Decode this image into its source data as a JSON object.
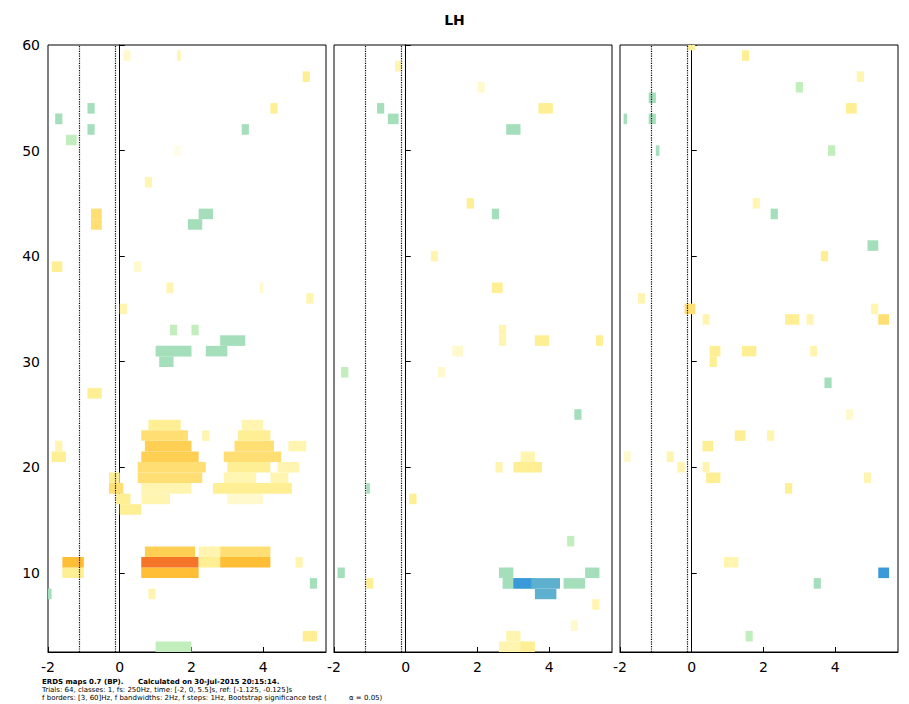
{
  "chart_data": {
    "type": "heatmap",
    "title": "LH",
    "footer": [
      "ERDS maps 0.7 (BP).      Calculated on 30-Jul-2015 20:15:14.",
      "Trials: 64, classes: 1, fs: 250Hz, time: [-2, 0, 5.5]s, ref: [-1.125, -0.125]s",
      "f borders: [3, 60]Hz, f bandwidths: 2Hz, f steps: 1Hz, Bootstrap significance test (          α = 0.05)"
    ],
    "xlim": [
      -2,
      5.75
    ],
    "xticks": [
      -2,
      0,
      2,
      4
    ],
    "ylim": [
      2.5,
      60
    ],
    "yticks": [
      10,
      20,
      30,
      40,
      50,
      60
    ],
    "ref_lines": [
      -1.125,
      -0.125
    ],
    "colorscale": {
      "range": [
        -0.6,
        1.2
      ],
      "colors": [
        "#3a9ad9",
        "#b9ecb4",
        "#ffffff",
        "#fff29a",
        "#ffb828",
        "#f05a28"
      ]
    },
    "panels": [
      {
        "tick_labels": true,
        "cells": [
          [
            0.6,
            2.2,
            10,
            0.8
          ],
          [
            0.6,
            2.2,
            11,
            1.1
          ],
          [
            0.7,
            2.1,
            12,
            0.7
          ],
          [
            2.2,
            2.8,
            11,
            0.5
          ],
          [
            2.2,
            2.8,
            12,
            0.4
          ],
          [
            2.8,
            4.2,
            11,
            0.8
          ],
          [
            2.8,
            4.2,
            12,
            0.6
          ],
          [
            -1.6,
            -1.0,
            10,
            0.5
          ],
          [
            -1.6,
            -1.0,
            11,
            0.8
          ],
          [
            0.0,
            0.6,
            16,
            0.5
          ],
          [
            -0.1,
            0.3,
            17,
            0.5
          ],
          [
            0.6,
            1.4,
            17,
            0.4
          ],
          [
            3.0,
            4.0,
            17,
            0.3
          ],
          [
            -0.3,
            0.1,
            18,
            0.6
          ],
          [
            0.6,
            2.0,
            18,
            0.4
          ],
          [
            2.6,
            4.8,
            18,
            0.5
          ],
          [
            -0.3,
            0.0,
            19,
            0.5
          ],
          [
            0.5,
            2.3,
            19,
            0.6
          ],
          [
            2.9,
            3.8,
            19,
            0.4
          ],
          [
            4.2,
            4.7,
            19,
            0.4
          ],
          [
            0.5,
            2.4,
            20,
            0.6
          ],
          [
            3.0,
            4.2,
            20,
            0.5
          ],
          [
            4.4,
            5.0,
            20,
            0.4
          ],
          [
            0.6,
            2.2,
            21,
            0.7
          ],
          [
            2.9,
            4.5,
            21,
            0.6
          ],
          [
            -1.9,
            -1.5,
            21,
            0.5
          ],
          [
            0.7,
            2.0,
            22,
            0.7
          ],
          [
            3.2,
            4.3,
            22,
            0.6
          ],
          [
            4.7,
            5.2,
            22,
            0.4
          ],
          [
            -1.8,
            -1.6,
            22,
            0.4
          ],
          [
            0.6,
            1.9,
            23,
            0.6
          ],
          [
            2.3,
            2.5,
            23,
            0.4
          ],
          [
            3.3,
            4.2,
            23,
            0.5
          ],
          [
            0.8,
            1.7,
            24,
            0.5
          ],
          [
            3.4,
            4.0,
            24,
            0.4
          ],
          [
            1.1,
            1.5,
            30,
            -0.3
          ],
          [
            1.0,
            2.0,
            31,
            -0.3
          ],
          [
            2.4,
            3.0,
            31,
            -0.3
          ],
          [
            2.8,
            3.5,
            32,
            -0.3
          ],
          [
            2.0,
            2.2,
            33,
            -0.2
          ],
          [
            1.4,
            1.6,
            33,
            -0.2
          ],
          [
            -0.9,
            -0.5,
            27,
            0.5
          ],
          [
            -1.9,
            -1.6,
            39,
            0.5
          ],
          [
            -0.8,
            -0.5,
            43,
            0.6
          ],
          [
            -0.8,
            -0.5,
            44,
            0.6
          ],
          [
            -1.8,
            -1.6,
            53,
            -0.3
          ],
          [
            -1.5,
            -1.2,
            51,
            -0.2
          ],
          [
            -0.9,
            -0.7,
            54,
            -0.3
          ],
          [
            -0.9,
            -0.7,
            52,
            -0.3
          ],
          [
            0.1,
            0.3,
            59,
            0.3
          ],
          [
            1.9,
            2.3,
            43,
            -0.3
          ],
          [
            2.2,
            2.6,
            44,
            -0.3
          ],
          [
            0.7,
            0.9,
            47,
            0.4
          ],
          [
            1.5,
            1.7,
            50,
            0.2
          ],
          [
            1.6,
            1.7,
            59,
            0.4
          ],
          [
            3.4,
            3.6,
            52,
            -0.3
          ],
          [
            4.2,
            4.4,
            54,
            0.5
          ],
          [
            5.1,
            5.3,
            57,
            0.5
          ],
          [
            5.2,
            5.4,
            36,
            0.4
          ],
          [
            3.9,
            4.0,
            37,
            0.3
          ],
          [
            0.0,
            0.2,
            35,
            0.4
          ],
          [
            0.4,
            0.6,
            39,
            0.3
          ],
          [
            1.3,
            1.5,
            37,
            0.4
          ],
          [
            0.8,
            1.0,
            8,
            0.4
          ],
          [
            1.0,
            2.0,
            3,
            -0.2
          ],
          [
            5.1,
            5.5,
            4,
            0.5
          ],
          [
            5.3,
            5.5,
            9,
            -0.3
          ],
          [
            -2.0,
            -1.9,
            8,
            -0.3
          ],
          [
            4.9,
            5.1,
            11,
            0.4
          ]
        ]
      },
      {
        "tick_labels": "x",
        "cells": [
          [
            2.7,
            3.5,
            9,
            -0.3
          ],
          [
            3.0,
            3.6,
            9,
            -0.6
          ],
          [
            3.5,
            4.3,
            9,
            -0.5
          ],
          [
            3.6,
            4.2,
            8,
            -0.5
          ],
          [
            2.6,
            3.0,
            10,
            -0.3
          ],
          [
            4.4,
            5.0,
            9,
            -0.3
          ],
          [
            5.0,
            5.4,
            10,
            -0.3
          ],
          [
            4.5,
            4.7,
            13,
            -0.2
          ],
          [
            2.6,
            3.3,
            3,
            0.4
          ],
          [
            2.8,
            3.2,
            4,
            0.4
          ],
          [
            -1.1,
            -0.9,
            9,
            0.5
          ],
          [
            -1.9,
            -1.7,
            10,
            -0.3
          ],
          [
            -1.1,
            -1.0,
            18,
            -0.3
          ],
          [
            0.1,
            0.3,
            17,
            0.5
          ],
          [
            3.0,
            3.8,
            20,
            0.5
          ],
          [
            3.2,
            3.6,
            21,
            0.4
          ],
          [
            2.5,
            2.7,
            20,
            0.4
          ],
          [
            3.6,
            4.0,
            32,
            0.5
          ],
          [
            2.6,
            2.8,
            32,
            0.4
          ],
          [
            2.6,
            2.8,
            33,
            0.4
          ],
          [
            1.3,
            1.6,
            31,
            0.3
          ],
          [
            2.4,
            2.7,
            37,
            0.5
          ],
          [
            0.7,
            0.9,
            40,
            0.4
          ],
          [
            1.7,
            1.9,
            45,
            0.5
          ],
          [
            2.4,
            2.6,
            44,
            -0.3
          ],
          [
            3.7,
            4.1,
            54,
            0.5
          ],
          [
            2.8,
            3.2,
            52,
            -0.3
          ],
          [
            -0.5,
            -0.2,
            53,
            -0.3
          ],
          [
            -0.8,
            -0.6,
            54,
            -0.3
          ],
          [
            -0.3,
            -0.1,
            58,
            0.4
          ],
          [
            2.0,
            2.2,
            56,
            0.3
          ],
          [
            4.7,
            4.9,
            25,
            -0.3
          ],
          [
            0.9,
            1.1,
            29,
            0.3
          ],
          [
            -1.8,
            -1.6,
            29,
            -0.2
          ],
          [
            5.3,
            5.5,
            32,
            0.5
          ],
          [
            5.2,
            5.4,
            7,
            0.4
          ],
          [
            4.6,
            4.8,
            5,
            0.3
          ],
          [
            3.2,
            3.6,
            3,
            0.5
          ]
        ]
      },
      {
        "tick_labels": "x",
        "cells": [
          [
            -0.2,
            0.1,
            35,
            0.6
          ],
          [
            0.3,
            0.5,
            34,
            0.4
          ],
          [
            0.5,
            0.8,
            31,
            0.5
          ],
          [
            0.5,
            0.7,
            30,
            0.5
          ],
          [
            1.4,
            1.8,
            31,
            0.5
          ],
          [
            2.6,
            3.0,
            34,
            0.5
          ],
          [
            3.2,
            3.4,
            34,
            0.4
          ],
          [
            3.3,
            3.5,
            31,
            0.4
          ],
          [
            5.2,
            5.5,
            34,
            0.6
          ],
          [
            5.0,
            5.2,
            35,
            0.4
          ],
          [
            3.6,
            3.8,
            40,
            0.5
          ],
          [
            0.3,
            0.6,
            22,
            0.5
          ],
          [
            0.4,
            0.8,
            19,
            0.5
          ],
          [
            0.3,
            0.5,
            20,
            0.4
          ],
          [
            1.2,
            1.5,
            23,
            0.5
          ],
          [
            2.6,
            2.8,
            18,
            0.5
          ],
          [
            4.8,
            5.0,
            19,
            0.4
          ],
          [
            0.9,
            1.3,
            11,
            0.4
          ],
          [
            5.2,
            5.5,
            10,
            -0.6
          ],
          [
            3.4,
            3.6,
            9,
            -0.3
          ],
          [
            -1.2,
            -1.0,
            55,
            -0.3
          ],
          [
            -1.2,
            -1.0,
            53,
            -0.3
          ],
          [
            -1.0,
            -0.9,
            50,
            -0.3
          ],
          [
            -0.1,
            0.1,
            60,
            0.5
          ],
          [
            1.4,
            1.6,
            59,
            0.5
          ],
          [
            4.3,
            4.6,
            54,
            0.5
          ],
          [
            4.6,
            4.8,
            57,
            0.4
          ],
          [
            4.3,
            4.5,
            25,
            0.3
          ],
          [
            4.9,
            5.2,
            41,
            -0.3
          ],
          [
            2.9,
            3.1,
            56,
            -0.2
          ],
          [
            1.7,
            1.9,
            45,
            0.4
          ],
          [
            2.2,
            2.4,
            44,
            -0.3
          ],
          [
            3.8,
            4.0,
            50,
            -0.2
          ],
          [
            -0.7,
            -0.5,
            21,
            0.4
          ],
          [
            -1.9,
            -1.7,
            21,
            0.3
          ],
          [
            -0.4,
            -0.2,
            20,
            0.4
          ],
          [
            2.1,
            2.3,
            23,
            0.4
          ],
          [
            3.7,
            3.9,
            28,
            -0.3
          ],
          [
            1.5,
            1.7,
            4,
            -0.2
          ],
          [
            -1.5,
            -1.3,
            36,
            0.4
          ],
          [
            -1.9,
            -1.8,
            53,
            -0.3
          ]
        ]
      }
    ]
  }
}
